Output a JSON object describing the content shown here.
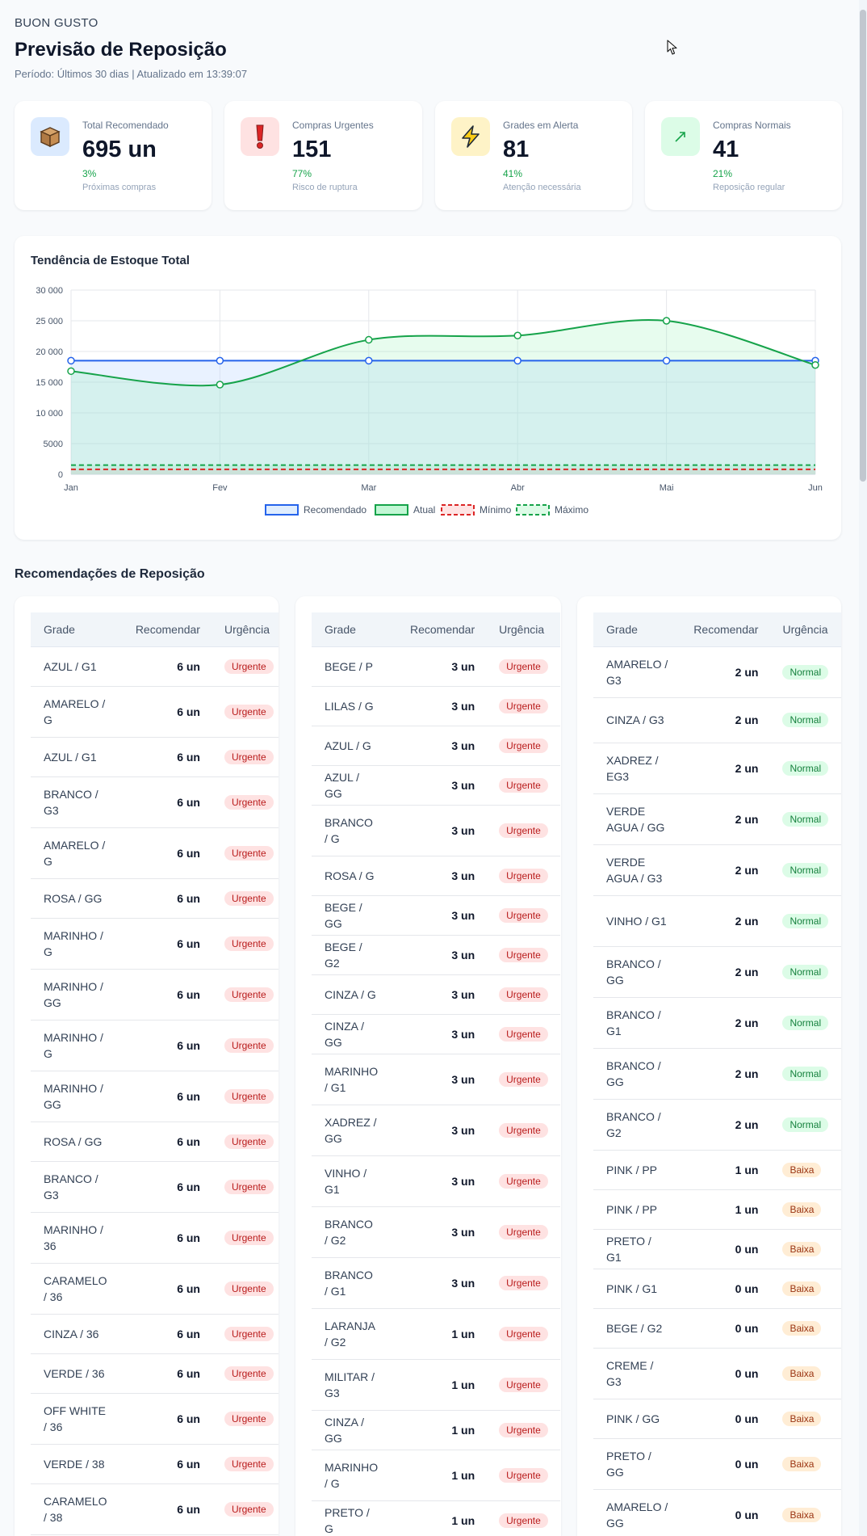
{
  "header": {
    "brand": "BUON GUSTO",
    "title": "Previsão de Reposição",
    "subtitle": "Período: Últimos 30 dias | Atualizado em 13:39:07"
  },
  "kpis": [
    {
      "label": "Total Recomendado",
      "value": "695 un",
      "pct": "3%",
      "hint": "Próximas compras",
      "icon": "box-icon",
      "color": "#dbeafe"
    },
    {
      "label": "Compras Urgentes",
      "value": "151",
      "pct": "77%",
      "hint": "Risco de ruptura",
      "icon": "exclamation-icon",
      "color": "#fee2e2"
    },
    {
      "label": "Grades em Alerta",
      "value": "81",
      "pct": "41%",
      "hint": "Atenção necessária",
      "icon": "lightning-icon",
      "color": "#fef3c7"
    },
    {
      "label": "Compras Normais",
      "value": "41",
      "pct": "21%",
      "hint": "Reposição regular",
      "icon": "trend-up-icon",
      "color": "#dcfce7"
    }
  ],
  "chart_data": {
    "type": "line",
    "title": "Tendência de Estoque Total",
    "categories": [
      "Jan",
      "Fev",
      "Mar",
      "Abr",
      "Mai",
      "Jun"
    ],
    "ylim": [
      0,
      30000
    ],
    "yticks": [
      0,
      5000,
      10000,
      15000,
      20000,
      25000,
      30000
    ],
    "ytick_labels": [
      "0",
      "5000",
      "10 000",
      "15 000",
      "20 000",
      "25 000",
      "30 000"
    ],
    "grid": true,
    "legend_position": "bottom",
    "series": [
      {
        "name": "Recomendado",
        "values": [
          18500,
          18500,
          18500,
          18500,
          18500,
          18500
        ],
        "color": "#2563eb",
        "fill": "rgba(191,219,254,0.35)",
        "dashed": false,
        "points": true
      },
      {
        "name": "Atual",
        "values": [
          16800,
          14600,
          21900,
          22600,
          25000,
          17800
        ],
        "color": "#16a34a",
        "fill": "rgba(134,239,172,0.2)",
        "dashed": false,
        "points": true
      },
      {
        "name": "Mínimo",
        "values": [
          800,
          800,
          800,
          800,
          800,
          800
        ],
        "color": "#dc2626",
        "fill": "rgba(254,202,202,0.5)",
        "dashed": true,
        "points": false
      },
      {
        "name": "Máximo",
        "values": [
          1500,
          1500,
          1500,
          1500,
          1500,
          1500
        ],
        "color": "#16a34a",
        "fill": "rgba(187,247,208,0.5)",
        "dashed": true,
        "points": false
      }
    ]
  },
  "section_title": "Recomendações de Reposição",
  "table_headers": {
    "grade": "Grade",
    "recomendar": "Recomendar",
    "urgencia": "Urgência"
  },
  "tables": [
    [
      {
        "grade": "AZUL / G1",
        "qty": "6 un",
        "urgency": "Urgente"
      },
      {
        "grade": "AMARELO / G",
        "qty": "6 un",
        "urgency": "Urgente"
      },
      {
        "grade": "AZUL / G1",
        "qty": "6 un",
        "urgency": "Urgente"
      },
      {
        "grade": "BRANCO / G3",
        "qty": "6 un",
        "urgency": "Urgente"
      },
      {
        "grade": "AMARELO / G",
        "qty": "6 un",
        "urgency": "Urgente"
      },
      {
        "grade": "ROSA / GG",
        "qty": "6 un",
        "urgency": "Urgente"
      },
      {
        "grade": "MARINHO / G",
        "qty": "6 un",
        "urgency": "Urgente"
      },
      {
        "grade": "MARINHO / GG",
        "qty": "6 un",
        "urgency": "Urgente"
      },
      {
        "grade": "MARINHO / G",
        "qty": "6 un",
        "urgency": "Urgente"
      },
      {
        "grade": "MARINHO / GG",
        "qty": "6 un",
        "urgency": "Urgente"
      },
      {
        "grade": "ROSA / GG",
        "qty": "6 un",
        "urgency": "Urgente"
      },
      {
        "grade": "BRANCO / G3",
        "qty": "6 un",
        "urgency": "Urgente"
      },
      {
        "grade": "MARINHO / 36",
        "qty": "6 un",
        "urgency": "Urgente"
      },
      {
        "grade": "CARAMELO / 36",
        "qty": "6 un",
        "urgency": "Urgente"
      },
      {
        "grade": "CINZA / 36",
        "qty": "6 un",
        "urgency": "Urgente"
      },
      {
        "grade": "VERDE / 36",
        "qty": "6 un",
        "urgency": "Urgente"
      },
      {
        "grade": "OFF WHITE / 36",
        "qty": "6 un",
        "urgency": "Urgente"
      },
      {
        "grade": "VERDE / 38",
        "qty": "6 un",
        "urgency": "Urgente"
      },
      {
        "grade": "CARAMELO / 38",
        "qty": "6 un",
        "urgency": "Urgente"
      }
    ],
    [
      {
        "grade": "BEGE / P",
        "qty": "3 un",
        "urgency": "Urgente"
      },
      {
        "grade": "LILAS / G",
        "qty": "3 un",
        "urgency": "Urgente"
      },
      {
        "grade": "AZUL / G",
        "qty": "3 un",
        "urgency": "Urgente"
      },
      {
        "grade": "AZUL / GG",
        "qty": "3 un",
        "urgency": "Urgente"
      },
      {
        "grade": "BRANCO / G",
        "qty": "3 un",
        "urgency": "Urgente"
      },
      {
        "grade": "ROSA / G",
        "qty": "3 un",
        "urgency": "Urgente"
      },
      {
        "grade": "BEGE / GG",
        "qty": "3 un",
        "urgency": "Urgente"
      },
      {
        "grade": "BEGE / G2",
        "qty": "3 un",
        "urgency": "Urgente"
      },
      {
        "grade": "CINZA / G",
        "qty": "3 un",
        "urgency": "Urgente"
      },
      {
        "grade": "CINZA / GG",
        "qty": "3 un",
        "urgency": "Urgente"
      },
      {
        "grade": "MARINHO / G1",
        "qty": "3 un",
        "urgency": "Urgente"
      },
      {
        "grade": "XADREZ / GG",
        "qty": "3 un",
        "urgency": "Urgente"
      },
      {
        "grade": "VINHO / G1",
        "qty": "3 un",
        "urgency": "Urgente"
      },
      {
        "grade": "BRANCO / G2",
        "qty": "3 un",
        "urgency": "Urgente"
      },
      {
        "grade": "BRANCO / G1",
        "qty": "3 un",
        "urgency": "Urgente"
      },
      {
        "grade": "LARANJA / G2",
        "qty": "1 un",
        "urgency": "Urgente"
      },
      {
        "grade": "MILITAR / G3",
        "qty": "1 un",
        "urgency": "Urgente"
      },
      {
        "grade": "CINZA / GG",
        "qty": "1 un",
        "urgency": "Urgente"
      },
      {
        "grade": "MARINHO / G",
        "qty": "1 un",
        "urgency": "Urgente"
      },
      {
        "grade": "PRETO / G",
        "qty": "1 un",
        "urgency": "Urgente"
      }
    ],
    [
      {
        "grade": "AMARELO / G3",
        "qty": "2 un",
        "urgency": "Normal"
      },
      {
        "grade": "CINZA / G3",
        "qty": "2 un",
        "urgency": "Normal"
      },
      {
        "grade": "XADREZ / EG3",
        "qty": "2 un",
        "urgency": "Normal"
      },
      {
        "grade": "VERDE AGUA / GG",
        "qty": "2 un",
        "urgency": "Normal"
      },
      {
        "grade": "VERDE AGUA / G3",
        "qty": "2 un",
        "urgency": "Normal"
      },
      {
        "grade": "VINHO / G1",
        "qty": "2 un",
        "urgency": "Normal"
      },
      {
        "grade": "BRANCO / GG",
        "qty": "2 un",
        "urgency": "Normal"
      },
      {
        "grade": "BRANCO / G1",
        "qty": "2 un",
        "urgency": "Normal"
      },
      {
        "grade": "BRANCO / GG",
        "qty": "2 un",
        "urgency": "Normal"
      },
      {
        "grade": "BRANCO / G2",
        "qty": "2 un",
        "urgency": "Normal"
      },
      {
        "grade": "PINK / PP",
        "qty": "1 un",
        "urgency": "Baixa"
      },
      {
        "grade": "PINK / PP",
        "qty": "1 un",
        "urgency": "Baixa"
      },
      {
        "grade": "PRETO / G1",
        "qty": "0 un",
        "urgency": "Baixa"
      },
      {
        "grade": "PINK / G1",
        "qty": "0 un",
        "urgency": "Baixa"
      },
      {
        "grade": "BEGE / G2",
        "qty": "0 un",
        "urgency": "Baixa"
      },
      {
        "grade": "CREME / G3",
        "qty": "0 un",
        "urgency": "Baixa"
      },
      {
        "grade": "PINK / GG",
        "qty": "0 un",
        "urgency": "Baixa"
      },
      {
        "grade": "PRETO / GG",
        "qty": "0 un",
        "urgency": "Baixa"
      },
      {
        "grade": "AMARELO / GG",
        "qty": "0 un",
        "urgency": "Baixa"
      }
    ]
  ]
}
